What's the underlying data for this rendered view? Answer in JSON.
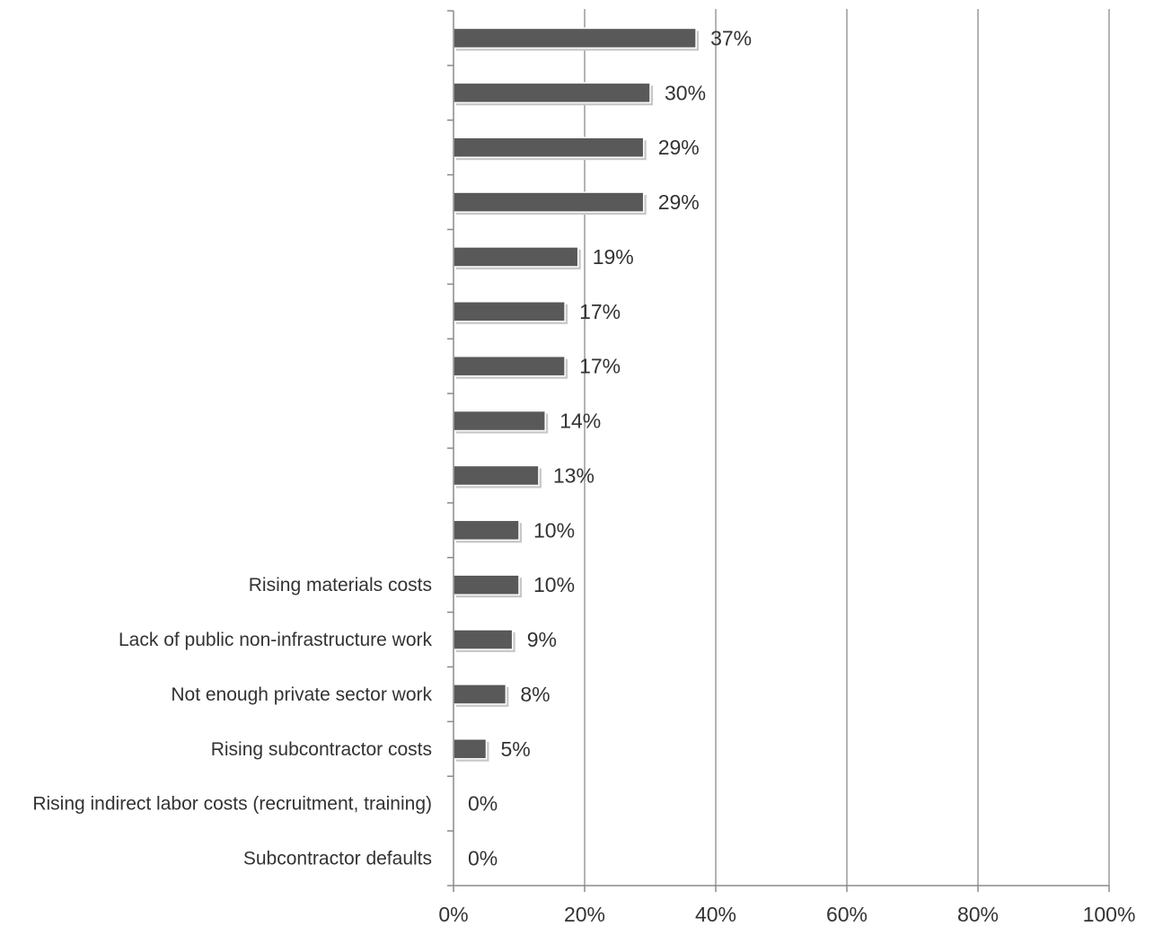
{
  "chart_data": {
    "type": "bar",
    "orientation": "horizontal",
    "categories": [
      "",
      "",
      "",
      "",
      "",
      "",
      "",
      "",
      "",
      "",
      "Rising materials costs",
      "Lack of public non-infrastructure work",
      "Not enough private sector work",
      "Rising subcontractor costs",
      "Rising indirect labor costs (recruitment, training)",
      "Subcontractor defaults"
    ],
    "values": [
      37,
      30,
      29,
      29,
      19,
      17,
      17,
      14,
      13,
      10,
      10,
      9,
      8,
      5,
      0,
      0
    ],
    "value_labels": [
      "37%",
      "30%",
      "29%",
      "29%",
      "19%",
      "17%",
      "17%",
      "14%",
      "13%",
      "10%",
      "10%",
      "9%",
      "8%",
      "5%",
      "0%",
      "0%"
    ],
    "xlim": [
      0,
      100
    ],
    "x_ticks": [
      0,
      20,
      40,
      60,
      80,
      100
    ],
    "x_tick_labels": [
      "0%",
      "20%",
      "40%",
      "60%",
      "80%",
      "100%"
    ],
    "grid": "vertical",
    "legend": "none",
    "colors": {
      "bar": "#595959",
      "grid": "#9a9a9a",
      "text": "#333333",
      "background": "#ffffff"
    }
  }
}
